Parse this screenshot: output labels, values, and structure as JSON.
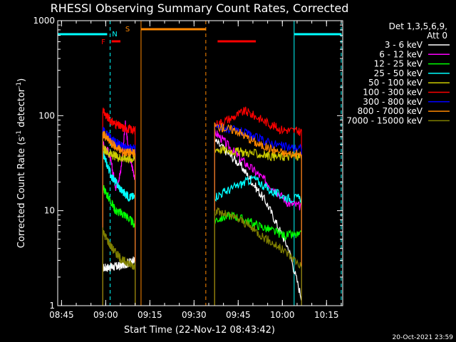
{
  "chart_data": {
    "type": "line",
    "title": "RHESSI Observing Summary Count Rates, Corrected",
    "xlabel": "Start Time (22-Nov-12 08:43:42)",
    "ylabel_main": "Corrected Count Rate (s",
    "ylabel_sup1": "-1",
    "ylabel_mid": " detector",
    "ylabel_sup2": "-1",
    "ylabel_end": ")",
    "ylog": true,
    "xlim": [
      "08:43:42",
      "10:20:30"
    ],
    "ylim": [
      1,
      1000
    ],
    "x_ticks": [
      "08:45",
      "09:00",
      "09:15",
      "09:30",
      "09:45",
      "10:00",
      "10:15"
    ],
    "y_ticks": [
      "1",
      "10",
      "100",
      "1000"
    ],
    "legend": {
      "placement": "top-right",
      "header1": "Det 1,3,5,6,9,",
      "header2": "Att 0",
      "entries": [
        {
          "label": "3 - 6 keV",
          "color": "#ffffff"
        },
        {
          "label": "6 - 12 keV",
          "color": "#ff00ff"
        },
        {
          "label": "12 - 25 keV",
          "color": "#00ff00"
        },
        {
          "label": "25 - 50 keV",
          "color": "#00ffff"
        },
        {
          "label": "50 - 100 keV",
          "color": "#cccc00"
        },
        {
          "label": "100 - 300 keV",
          "color": "#ff0000"
        },
        {
          "label": "300 - 800 keV",
          "color": "#0000ff"
        },
        {
          "label": "800 - 7000 keV",
          "color": "#ff8800"
        },
        {
          "label": "7000 - 15000 keV",
          "color": "#808000"
        }
      ]
    },
    "annotations": {
      "flag_letters": [
        {
          "text": "F",
          "color": "#ff0000"
        },
        {
          "text": "N",
          "color": "#00ffff"
        },
        {
          "text": "S",
          "color": "#ff8800"
        }
      ],
      "flag_bars": [
        {
          "label": "night",
          "color": "#00ffff",
          "x0": "08:43:42",
          "x1": "09:00:30"
        },
        {
          "label": "night",
          "color": "#00ffff",
          "x0": "10:04:00",
          "x1": "10:20:00"
        },
        {
          "label": "saa",
          "color": "#ff8800",
          "x0": "09:12:00",
          "x1": "09:34:00"
        },
        {
          "label": "flare",
          "color": "#ff0000",
          "x0": "09:02:00",
          "x1": "09:05:00"
        },
        {
          "label": "flare",
          "color": "#ff0000",
          "x0": "09:38:00",
          "x1": "09:51:00"
        }
      ],
      "vlines": [
        {
          "x": "08:43:42",
          "color": "#00ffff",
          "style": "solid"
        },
        {
          "x": "09:01:30",
          "color": "#00ffff",
          "style": "dashed"
        },
        {
          "x": "09:12:00",
          "color": "#ff8800",
          "style": "solid"
        },
        {
          "x": "09:34:00",
          "color": "#ff8800",
          "style": "dashed"
        },
        {
          "x": "10:04:00",
          "color": "#00ffff",
          "style": "solid"
        },
        {
          "x": "10:20:00",
          "color": "#00ffff",
          "style": "dashed"
        }
      ]
    },
    "segments": [
      {
        "start": "08:59:00",
        "end": "09:10:00"
      },
      {
        "start": "09:37:00",
        "end": "10:06:30"
      }
    ],
    "series": [
      {
        "name": "3 - 6 keV",
        "color": "#ffffff",
        "seg_a": [
          [
            0,
            2.5
          ],
          [
            0.5,
            2.6
          ],
          [
            1,
            3
          ]
        ],
        "seg_b": [
          [
            0,
            55
          ],
          [
            0.3,
            30
          ],
          [
            0.6,
            12
          ],
          [
            0.85,
            4
          ],
          [
            1,
            1.2
          ]
        ]
      },
      {
        "name": "6 - 12 keV",
        "color": "#ff00ff",
        "seg_a": [
          [
            0,
            50
          ],
          [
            0.2,
            40
          ],
          [
            0.4,
            18
          ],
          [
            0.55,
            25
          ],
          [
            0.7,
            85
          ],
          [
            0.8,
            40
          ],
          [
            1,
            22
          ]
        ],
        "seg_b": [
          [
            0,
            68
          ],
          [
            0.3,
            35
          ],
          [
            0.6,
            20
          ],
          [
            0.85,
            12
          ],
          [
            1,
            11
          ]
        ]
      },
      {
        "name": "12 - 25 keV",
        "color": "#00ff00",
        "seg_a": [
          [
            0,
            18
          ],
          [
            0.4,
            10
          ],
          [
            0.7,
            9
          ],
          [
            1,
            7
          ]
        ],
        "seg_b": [
          [
            0,
            8
          ],
          [
            0.2,
            9
          ],
          [
            0.5,
            7
          ],
          [
            0.8,
            5.5
          ],
          [
            1,
            5.5
          ]
        ]
      },
      {
        "name": "25 - 50 keV",
        "color": "#00ffff",
        "seg_a": [
          [
            0,
            40
          ],
          [
            0.3,
            22
          ],
          [
            0.6,
            16
          ],
          [
            0.8,
            14
          ],
          [
            1,
            14
          ]
        ],
        "seg_b": [
          [
            0,
            14
          ],
          [
            0.25,
            18
          ],
          [
            0.45,
            22
          ],
          [
            0.65,
            16
          ],
          [
            0.85,
            13.5
          ],
          [
            1,
            13.5
          ]
        ]
      },
      {
        "name": "50 - 100 keV",
        "color": "#cccc00",
        "seg_a": [
          [
            0,
            45
          ],
          [
            0.3,
            38
          ],
          [
            0.6,
            36
          ],
          [
            1,
            35
          ]
        ],
        "seg_b": [
          [
            0,
            45
          ],
          [
            0.25,
            42
          ],
          [
            0.45,
            40
          ],
          [
            0.7,
            37
          ],
          [
            1,
            37
          ]
        ]
      },
      {
        "name": "100 - 300 keV",
        "color": "#ff0000",
        "seg_a": [
          [
            0,
            110
          ],
          [
            0.3,
            85
          ],
          [
            0.6,
            75
          ],
          [
            1,
            70
          ]
        ],
        "seg_b": [
          [
            0,
            80
          ],
          [
            0.2,
            95
          ],
          [
            0.35,
            112
          ],
          [
            0.55,
            90
          ],
          [
            0.75,
            72
          ],
          [
            1,
            68
          ]
        ]
      },
      {
        "name": "300 - 800 keV",
        "color": "#0000ff",
        "seg_a": [
          [
            0,
            70
          ],
          [
            0.3,
            55
          ],
          [
            0.6,
            47
          ],
          [
            1,
            45
          ]
        ],
        "seg_b": [
          [
            0,
            78
          ],
          [
            0.3,
            68
          ],
          [
            0.55,
            55
          ],
          [
            0.8,
            47
          ],
          [
            1,
            45
          ]
        ]
      },
      {
        "name": "800 - 7000 keV",
        "color": "#ff8800",
        "seg_a": [
          [
            0,
            65
          ],
          [
            0.3,
            50
          ],
          [
            0.6,
            42
          ],
          [
            1,
            40
          ]
        ],
        "seg_b": [
          [
            0,
            78
          ],
          [
            0.25,
            70
          ],
          [
            0.5,
            50
          ],
          [
            0.8,
            40
          ],
          [
            1,
            39
          ]
        ]
      },
      {
        "name": "7000 - 15000 keV",
        "color": "#808000",
        "seg_a": [
          [
            0,
            6
          ],
          [
            0.3,
            4
          ],
          [
            0.6,
            3
          ],
          [
            1,
            2.6
          ]
        ],
        "seg_b": [
          [
            0,
            10
          ],
          [
            0.3,
            8
          ],
          [
            0.6,
            5
          ],
          [
            0.85,
            3.5
          ],
          [
            1,
            2.6
          ]
        ]
      }
    ],
    "footer_date": "20-Oct-2021 23:59"
  }
}
